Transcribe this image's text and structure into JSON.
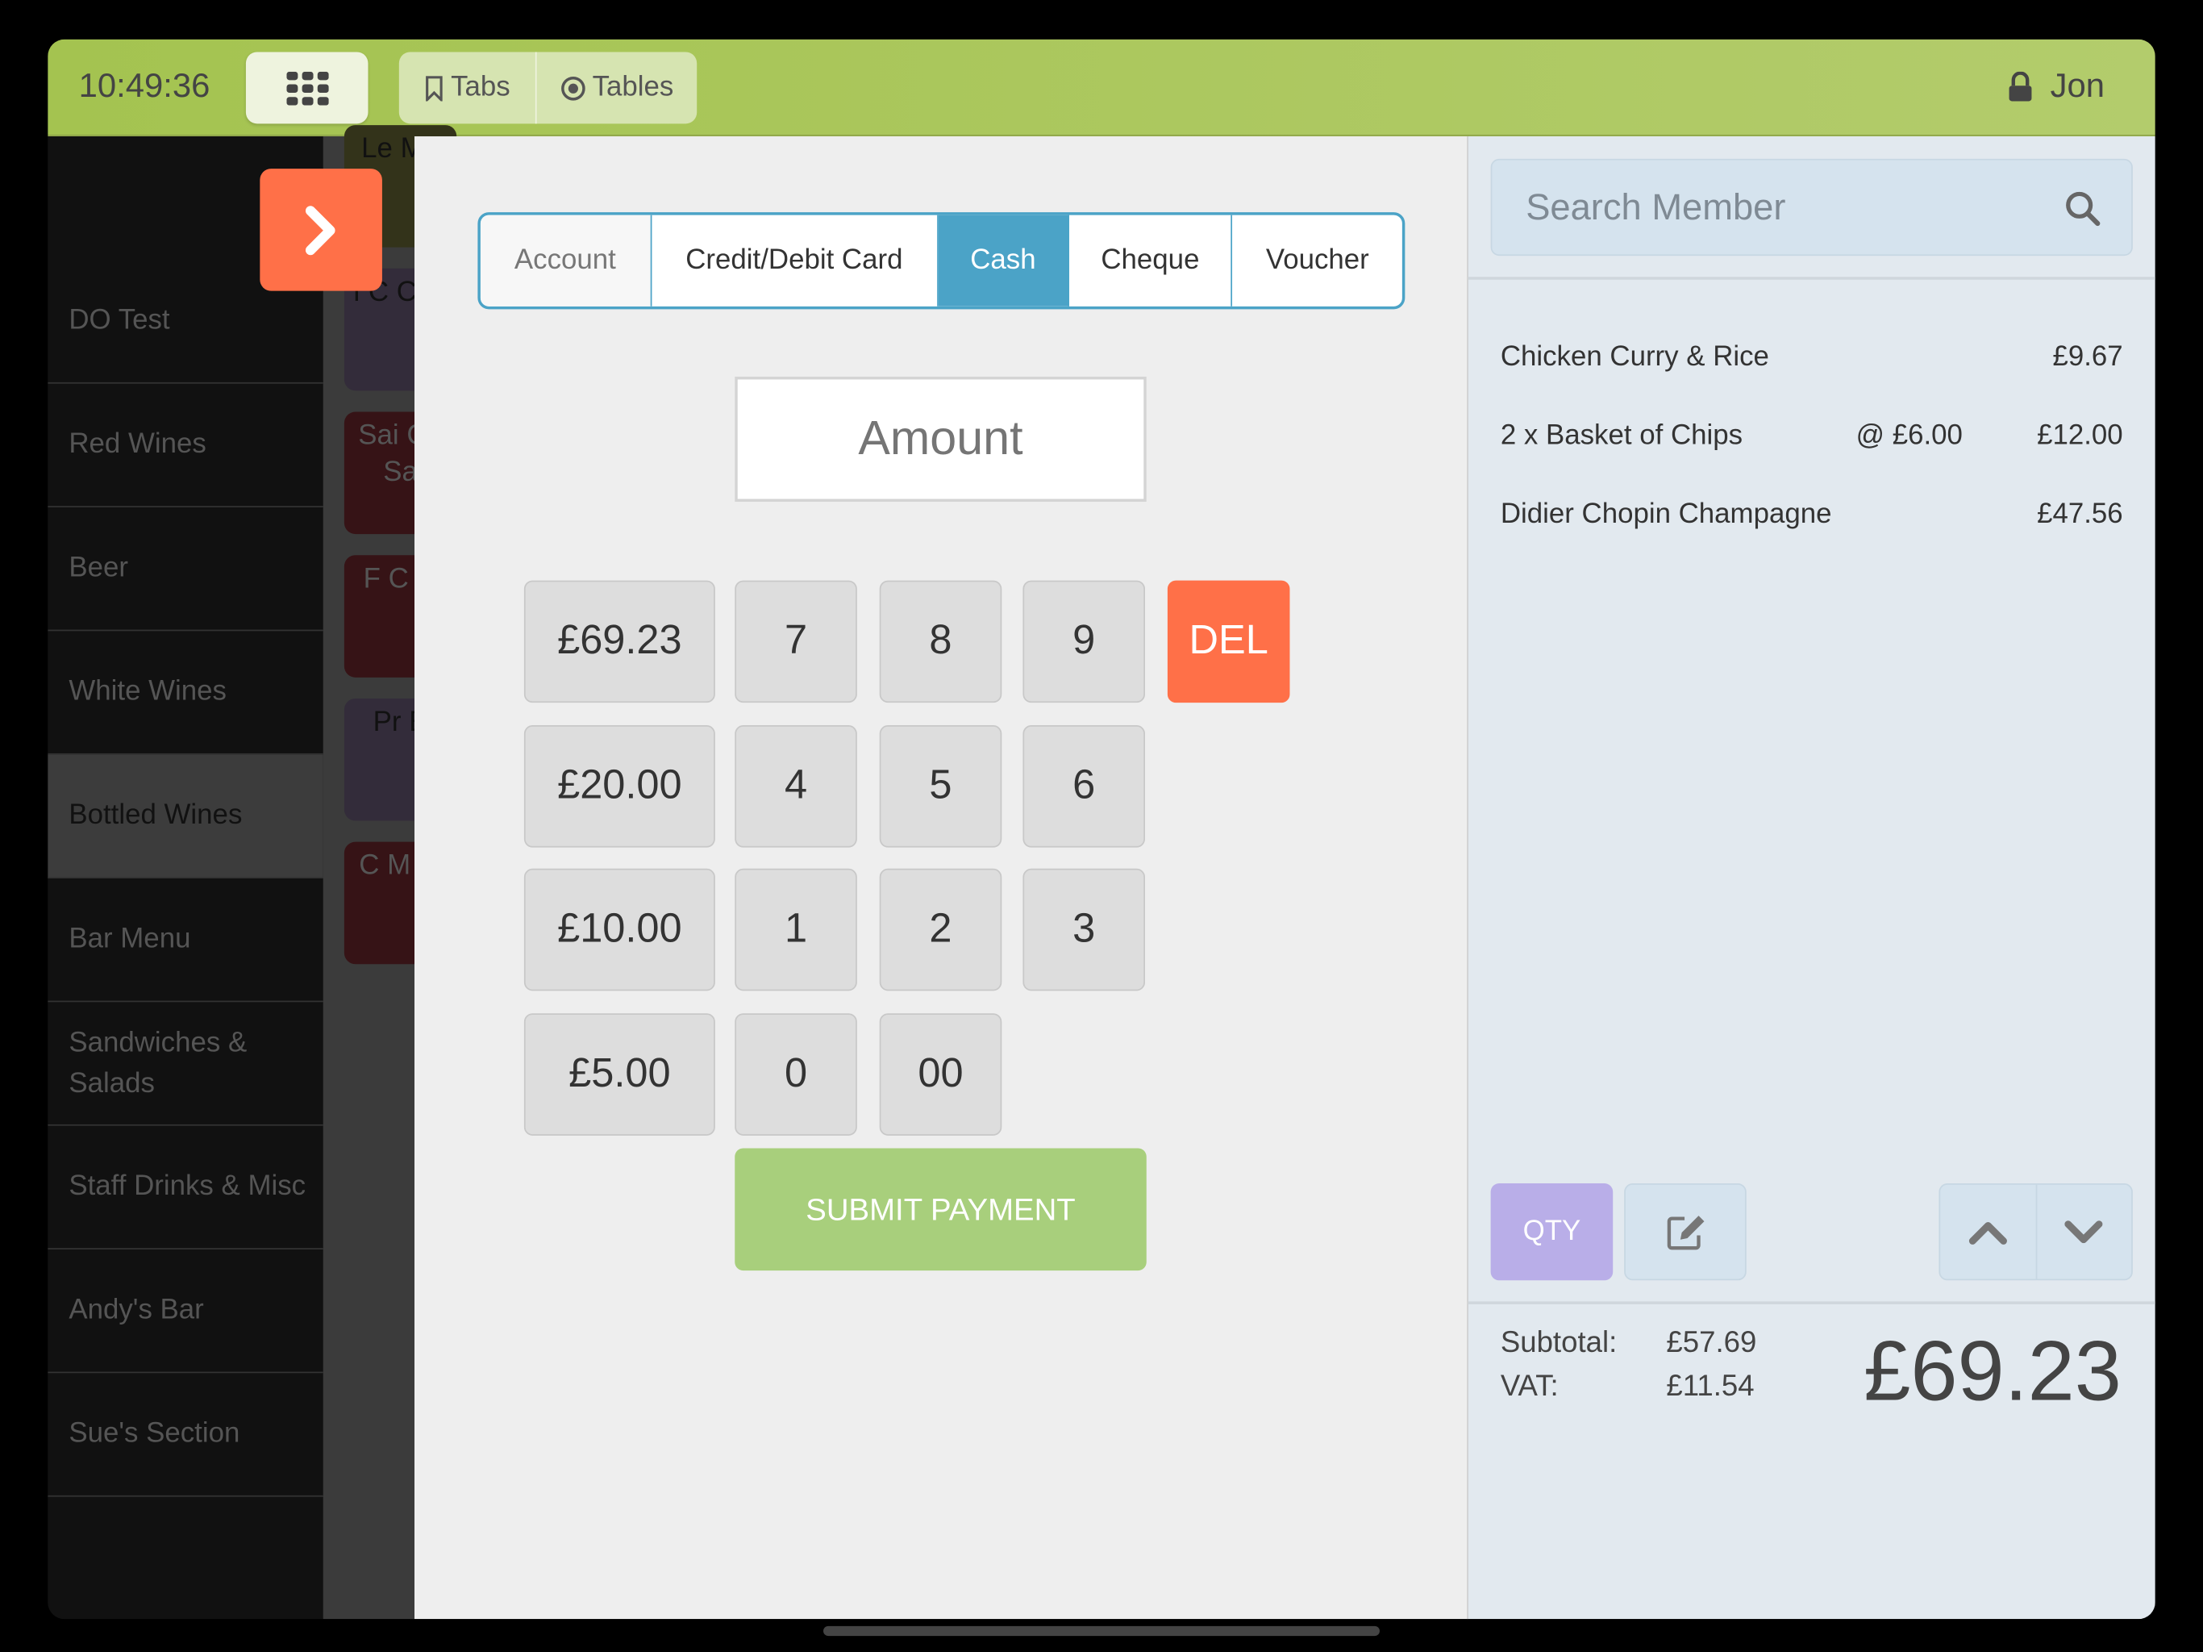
{
  "topbar": {
    "clock": "10:49:36",
    "tabs_label": "Tabs",
    "tables_label": "Tables",
    "user": "Jon"
  },
  "sidebar": {
    "items": [
      {
        "label": "DO Test"
      },
      {
        "label": "Red Wines"
      },
      {
        "label": "Beer"
      },
      {
        "label": "White Wines"
      },
      {
        "label": "Bottled Wines",
        "active": true
      },
      {
        "label": "Bar Menu"
      },
      {
        "label": "Sandwiches & Salads"
      },
      {
        "label": "Staff Drinks & Misc"
      },
      {
        "label": "Andy's Bar"
      },
      {
        "label": "Sue's Section"
      }
    ]
  },
  "products": {
    "tiles": [
      {
        "label": "Le Mu",
        "color": "#33331a",
        "text": "#111"
      },
      {
        "label": "I C Cha",
        "color": "#332c3a",
        "text": "#111"
      },
      {
        "label": "Sai Ca Sa",
        "color": "#361316",
        "text": "#555"
      },
      {
        "label": "F C d'",
        "color": "#361316",
        "text": "#555"
      },
      {
        "label": "Pr E",
        "color": "#332c3a",
        "text": "#111"
      },
      {
        "label": "C M M",
        "color": "#361316",
        "text": "#555"
      }
    ]
  },
  "payment": {
    "methods": [
      {
        "label": "Account"
      },
      {
        "label": "Credit/Debit Card"
      },
      {
        "label": "Cash",
        "selected": true
      },
      {
        "label": "Cheque"
      },
      {
        "label": "Voucher"
      }
    ],
    "amount_placeholder": "Amount",
    "quick_amounts": [
      "£69.23",
      "£20.00",
      "£10.00",
      "£5.00"
    ],
    "keys": [
      "7",
      "8",
      "9",
      "4",
      "5",
      "6",
      "1",
      "2",
      "3",
      "0",
      "00"
    ],
    "del_label": "DEL",
    "submit_label": "SUBMIT PAYMENT"
  },
  "order": {
    "search_placeholder": "Search Member",
    "items": [
      {
        "name": "Chicken Curry & Rice",
        "unit": "",
        "price": "£9.67"
      },
      {
        "name": "2 x  Basket of Chips",
        "unit": "@ £6.00",
        "price": "£12.00"
      },
      {
        "name": "Didier Chopin Champagne",
        "unit": "",
        "price": "£47.56"
      }
    ],
    "qty_label": "QTY",
    "subtotal_label": "Subtotal:",
    "subtotal": "£57.69",
    "vat_label": "VAT:",
    "vat": "£11.54",
    "total": "£69.23"
  },
  "colors": {
    "accent": "#4ba3c7",
    "danger": "#ff7048",
    "submit": "#a8cf7c",
    "qty": "#b9aee8",
    "topbar": "#a4c350"
  }
}
